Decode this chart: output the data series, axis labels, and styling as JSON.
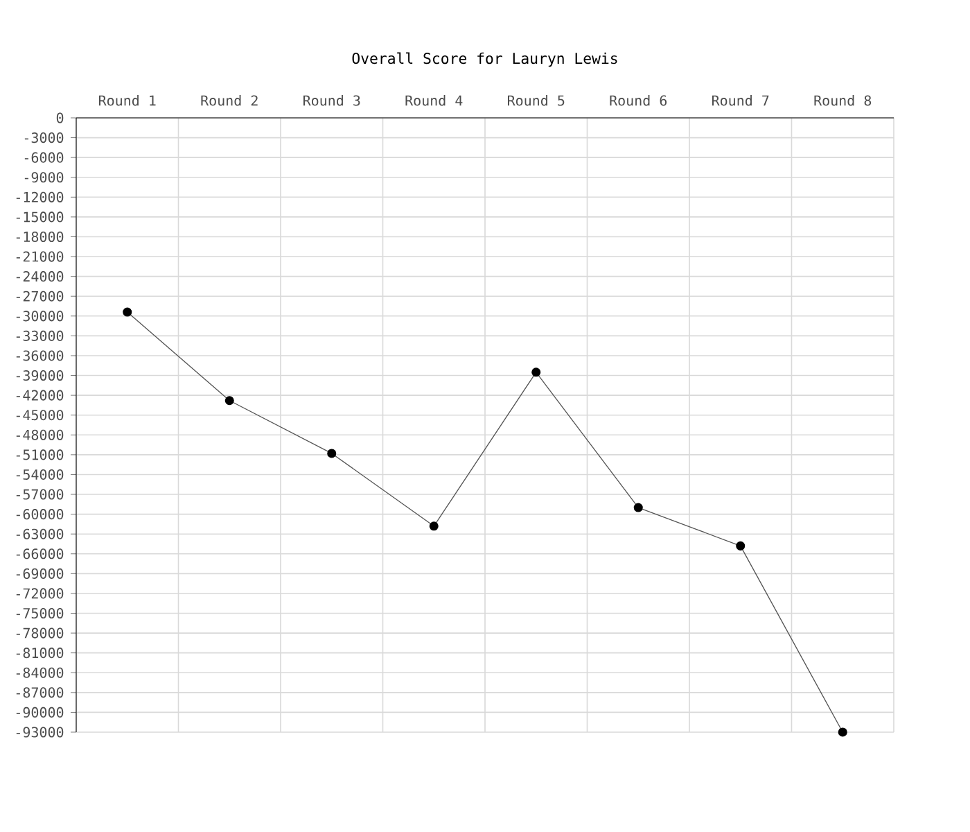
{
  "chart_data": {
    "type": "line",
    "title": "Overall Score for Lauryn Lewis",
    "categories": [
      "Round 1",
      "Round 2",
      "Round 3",
      "Round 4",
      "Round 5",
      "Round 6",
      "Round 7",
      "Round 8"
    ],
    "series": [
      {
        "color": "#555555",
        "values": [
          -29400,
          -42800,
          -50800,
          -61800,
          -38500,
          -59000,
          -64800,
          -93000
        ]
      }
    ],
    "ylim": [
      -93000,
      0
    ],
    "yticks": [
      0,
      -3000,
      -6000,
      -9000,
      -12000,
      -15000,
      -18000,
      -21000,
      -24000,
      -27000,
      -30000,
      -33000,
      -36000,
      -39000,
      -42000,
      -45000,
      -48000,
      -51000,
      -54000,
      -57000,
      -60000,
      -63000,
      -66000,
      -69000,
      -72000,
      -75000,
      -78000,
      -81000,
      -84000,
      -87000,
      -90000,
      -93000
    ],
    "grid": true,
    "marker": "circle",
    "line_style": "solid"
  }
}
